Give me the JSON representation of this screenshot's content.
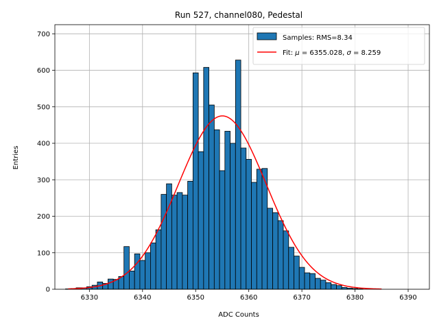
{
  "chart_data": {
    "type": "bar",
    "title": "Run 527, channel080, Pedestal",
    "xlabel": "ADC Counts",
    "ylabel": "Entries",
    "xlim": [
      6323.5,
      6394.0
    ],
    "ylim": [
      0,
      725
    ],
    "x_ticks": [
      6330,
      6340,
      6350,
      6360,
      6370,
      6380,
      6390
    ],
    "y_ticks": [
      0,
      100,
      200,
      300,
      400,
      500,
      600,
      700
    ],
    "grid": true,
    "legend_position": "top-right",
    "bins": {
      "start": 6325.5,
      "width": 1,
      "values": [
        1,
        2,
        4,
        4,
        7,
        11,
        20,
        16,
        28,
        27,
        35,
        117,
        50,
        97,
        79,
        100,
        127,
        163,
        260,
        289,
        258,
        265,
        258,
        296,
        593,
        377,
        608,
        505,
        437,
        325,
        433,
        400,
        628,
        387,
        356,
        293,
        329,
        331,
        222,
        210,
        188,
        160,
        115,
        91,
        60,
        45,
        43,
        30,
        25,
        18,
        13,
        10,
        5,
        3,
        2,
        1
      ],
      "fill_color": "#1f77b4",
      "edge_color": "#000000"
    },
    "fit": {
      "mu": 6355.028,
      "sigma": 8.259,
      "amplitude": 475,
      "x_range": [
        6326,
        6385
      ],
      "color": "#ff0000"
    },
    "legend": [
      {
        "label": "Samples: RMS=8.34",
        "kind": "bar",
        "color": "#1f77b4"
      },
      {
        "label_pre": "Fit: ",
        "mu_symbol": "μ",
        "label_mid": " = 6355.028, ",
        "sigma_symbol": "σ",
        "label_post": " = 8.259",
        "kind": "line",
        "color": "#ff0000"
      }
    ]
  }
}
